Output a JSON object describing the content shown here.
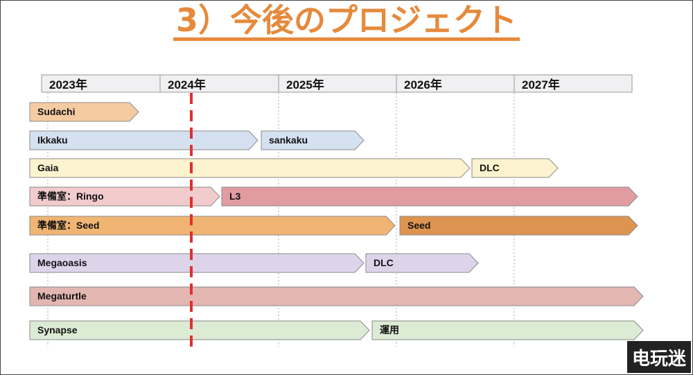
{
  "title": "3）今後のプロジェクト",
  "years": [
    "2023年",
    "2024年",
    "2025年",
    "2026年",
    "2027年"
  ],
  "current_marker": {
    "label_year": "2024年",
    "color": "#e03030"
  },
  "rows": [
    {
      "segments": [
        {
          "label": "Sudachi",
          "color": "#f5cba2"
        }
      ]
    },
    {
      "segments": [
        {
          "label": "Ikkaku",
          "color": "#d5e1f1"
        },
        {
          "label": "sankaku",
          "color": "#d5e1f1"
        }
      ]
    },
    {
      "segments": [
        {
          "label": "Gaia",
          "color": "#fdf3cf"
        },
        {
          "label": "DLC",
          "color": "#fdf3cf"
        }
      ]
    },
    {
      "segments": [
        {
          "label": "準備室：Ringo",
          "color": "#f2cbcd"
        },
        {
          "label": "L3",
          "color": "#e09ca1"
        }
      ]
    },
    {
      "segments": [
        {
          "label": "準備室：Seed",
          "color": "#f0b473"
        },
        {
          "label": "Seed",
          "color": "#dd9450"
        }
      ]
    },
    {
      "segments": [
        {
          "label": "Megaoasis",
          "color": "#ddd4ea"
        },
        {
          "label": "DLC",
          "color": "#ddd4ea"
        }
      ]
    },
    {
      "segments": [
        {
          "label": "Megaturtle",
          "color": "#e3b6b2"
        }
      ]
    },
    {
      "segments": [
        {
          "label": "Synapse",
          "color": "#dcebd4"
        },
        {
          "label": "運用",
          "color": "#dcebd4"
        }
      ]
    }
  ],
  "watermark": "电玩迷"
}
